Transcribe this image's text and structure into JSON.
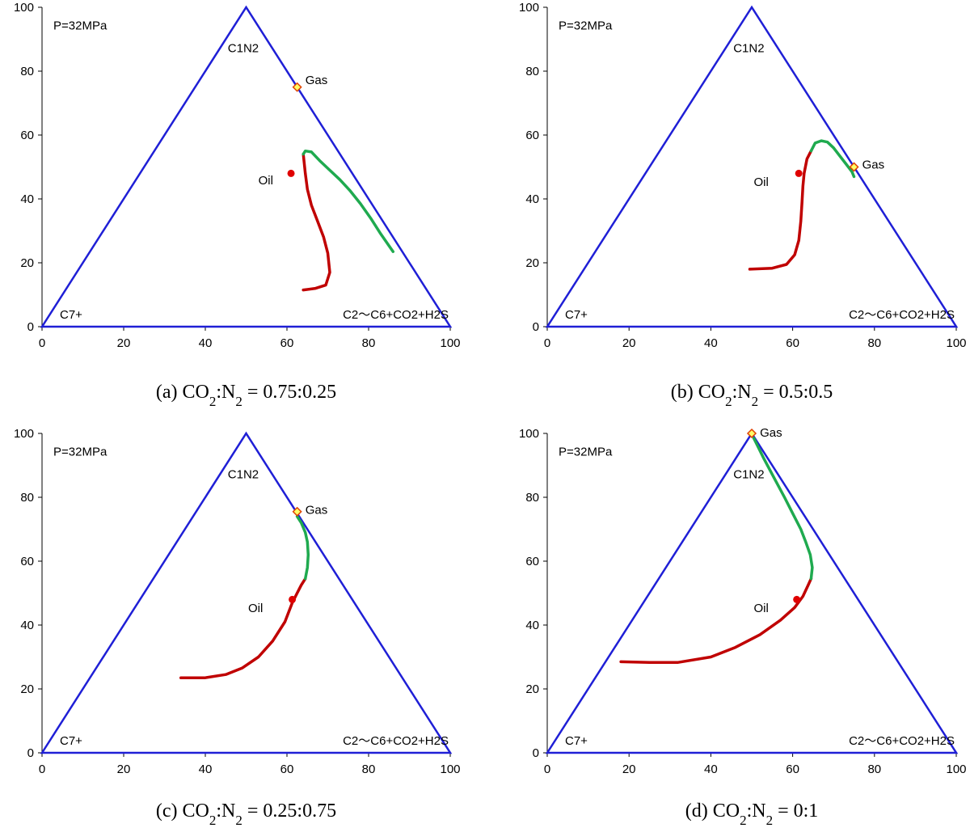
{
  "chart_data": [
    {
      "type": "scatter",
      "caption": {
        "prefix": "(a) CO",
        "sub1": "2",
        "mid": ":N",
        "sub2": "2",
        "suffix": " = 0.75:0.25"
      },
      "x_ticks": [
        "0",
        "20",
        "40",
        "60",
        "80",
        "100"
      ],
      "y_ticks": [
        "0",
        "20",
        "40",
        "60",
        "80",
        "100"
      ],
      "xlim": [
        0,
        100
      ],
      "ylim": [
        0,
        100
      ],
      "annotations": {
        "pressure": "P=32MPa",
        "apex": "C1N2",
        "left_vertex": "C7+",
        "right_vertex": "C2～C6+CO2+H2S",
        "gas": "Gas",
        "oil": "Oil"
      },
      "gas_point": [
        62.5,
        75
      ],
      "oil_point": [
        61,
        48
      ],
      "oil_label_at": [
        53,
        44.5
      ],
      "gas_label_at": [
        64.5,
        76
      ],
      "series": [
        {
          "color": "#c00000",
          "points": [
            [
              64,
              11.5
            ],
            [
              67,
              12
            ],
            [
              69.5,
              13
            ],
            [
              70.5,
              17
            ],
            [
              70,
              23
            ],
            [
              69,
              28
            ],
            [
              67.5,
              33
            ],
            [
              66,
              38
            ],
            [
              65,
              43
            ],
            [
              64.5,
              48
            ],
            [
              64,
              54
            ]
          ]
        },
        {
          "color": "#1faa4f",
          "points": [
            [
              64,
              54
            ],
            [
              64.5,
              55
            ],
            [
              66,
              54.7
            ],
            [
              68,
              52
            ],
            [
              70.5,
              49
            ],
            [
              73,
              46
            ],
            [
              75.5,
              42.5
            ],
            [
              78,
              38.5
            ],
            [
              80.5,
              34
            ],
            [
              83,
              29
            ],
            [
              86,
              23.5
            ]
          ]
        }
      ]
    },
    {
      "type": "scatter",
      "caption": {
        "prefix": "(b) CO",
        "sub1": "2",
        "mid": ":N",
        "sub2": "2",
        "suffix": " = 0.5:0.5"
      },
      "x_ticks": [
        "0",
        "20",
        "40",
        "60",
        "80",
        "100"
      ],
      "y_ticks": [
        "0",
        "20",
        "40",
        "60",
        "80",
        "100"
      ],
      "xlim": [
        0,
        100
      ],
      "ylim": [
        0,
        100
      ],
      "annotations": {
        "pressure": "P=32MPa",
        "apex": "C1N2",
        "left_vertex": "C7+",
        "right_vertex": "C2～C6+CO2+H2S",
        "gas": "Gas",
        "oil": "Oil"
      },
      "gas_point": [
        75,
        50
      ],
      "oil_point": [
        61.5,
        48
      ],
      "oil_label_at": [
        50.5,
        44
      ],
      "gas_label_at": [
        77,
        49.5
      ],
      "series": [
        {
          "color": "#c00000",
          "points": [
            [
              49.5,
              18
            ],
            [
              55,
              18.3
            ],
            [
              58.5,
              19.5
            ],
            [
              60.5,
              22.5
            ],
            [
              61.5,
              27
            ],
            [
              62,
              33
            ],
            [
              62.3,
              39
            ],
            [
              62.5,
              44
            ],
            [
              62.8,
              48
            ],
            [
              63.5,
              52.5
            ],
            [
              64.5,
              55
            ]
          ]
        },
        {
          "color": "#1faa4f",
          "points": [
            [
              64.5,
              55
            ],
            [
              65.5,
              57.5
            ],
            [
              67,
              58.2
            ],
            [
              68.5,
              57.8
            ],
            [
              70,
              56
            ],
            [
              71.5,
              53.5
            ],
            [
              73,
              51
            ],
            [
              74.5,
              48.5
            ],
            [
              75,
              47
            ]
          ]
        }
      ]
    },
    {
      "type": "scatter",
      "caption": {
        "prefix": "(c) CO",
        "sub1": "2",
        "mid": ":N",
        "sub2": "2",
        "suffix": " = 0.25:0.75"
      },
      "x_ticks": [
        "0",
        "20",
        "40",
        "60",
        "80",
        "100"
      ],
      "y_ticks": [
        "0",
        "20",
        "40",
        "60",
        "80",
        "100"
      ],
      "xlim": [
        0,
        100
      ],
      "ylim": [
        0,
        100
      ],
      "annotations": {
        "pressure": "P=32MPa",
        "apex": "C1N2",
        "left_vertex": "C7+",
        "right_vertex": "C2～C6+CO2+H2S",
        "gas": "Gas",
        "oil": "Oil"
      },
      "gas_point": [
        62.5,
        75.5
      ],
      "oil_point": [
        61.3,
        48
      ],
      "oil_label_at": [
        50.5,
        44
      ],
      "gas_label_at": [
        64.5,
        74.8
      ],
      "series": [
        {
          "color": "#c00000",
          "points": [
            [
              34,
              23.5
            ],
            [
              40,
              23.5
            ],
            [
              45,
              24.5
            ],
            [
              49,
              26.5
            ],
            [
              53,
              30
            ],
            [
              56.5,
              35
            ],
            [
              59.5,
              41
            ],
            [
              61.3,
              47
            ],
            [
              62.5,
              50
            ],
            [
              63.5,
              52.5
            ],
            [
              64.5,
              54.5
            ]
          ]
        },
        {
          "color": "#1faa4f",
          "points": [
            [
              64.5,
              54.5
            ],
            [
              65,
              58
            ],
            [
              65.2,
              62
            ],
            [
              65,
              66
            ],
            [
              64.5,
              69
            ],
            [
              63.5,
              72
            ],
            [
              62.5,
              74
            ]
          ]
        }
      ]
    },
    {
      "type": "scatter",
      "caption": {
        "prefix": "(d) CO",
        "sub1": "2",
        "mid": ":N",
        "sub2": "2",
        "suffix": " = 0:1"
      },
      "x_ticks": [
        "0",
        "20",
        "40",
        "60",
        "80",
        "100"
      ],
      "y_ticks": [
        "0",
        "20",
        "40",
        "60",
        "80",
        "100"
      ],
      "xlim": [
        0,
        100
      ],
      "ylim": [
        0,
        100
      ],
      "annotations": {
        "pressure": "P=32MPa",
        "apex": "C1N2",
        "left_vertex": "C7+",
        "right_vertex": "C2～C6+CO2+H2S",
        "gas": "Gas",
        "oil": "Oil"
      },
      "gas_point": [
        50,
        100
      ],
      "oil_point": [
        61,
        48
      ],
      "oil_label_at": [
        50.5,
        44
      ],
      "gas_label_at": [
        52,
        99
      ],
      "series": [
        {
          "color": "#c00000",
          "points": [
            [
              18,
              28.5
            ],
            [
              25,
              28.3
            ],
            [
              32,
              28.3
            ],
            [
              40,
              30
            ],
            [
              46,
              33
            ],
            [
              52,
              37
            ],
            [
              57,
              41.5
            ],
            [
              60.5,
              45.5
            ],
            [
              62.5,
              49
            ],
            [
              63.8,
              52.5
            ],
            [
              64.5,
              54.5
            ]
          ]
        },
        {
          "color": "#1faa4f",
          "points": [
            [
              64.5,
              54.5
            ],
            [
              64.8,
              58
            ],
            [
              64.3,
              62
            ],
            [
              63.2,
              66
            ],
            [
              62,
              70
            ],
            [
              60,
              75
            ],
            [
              58,
              80
            ],
            [
              55.5,
              86
            ],
            [
              53,
              92
            ],
            [
              50.5,
              98.5
            ]
          ]
        }
      ]
    }
  ]
}
